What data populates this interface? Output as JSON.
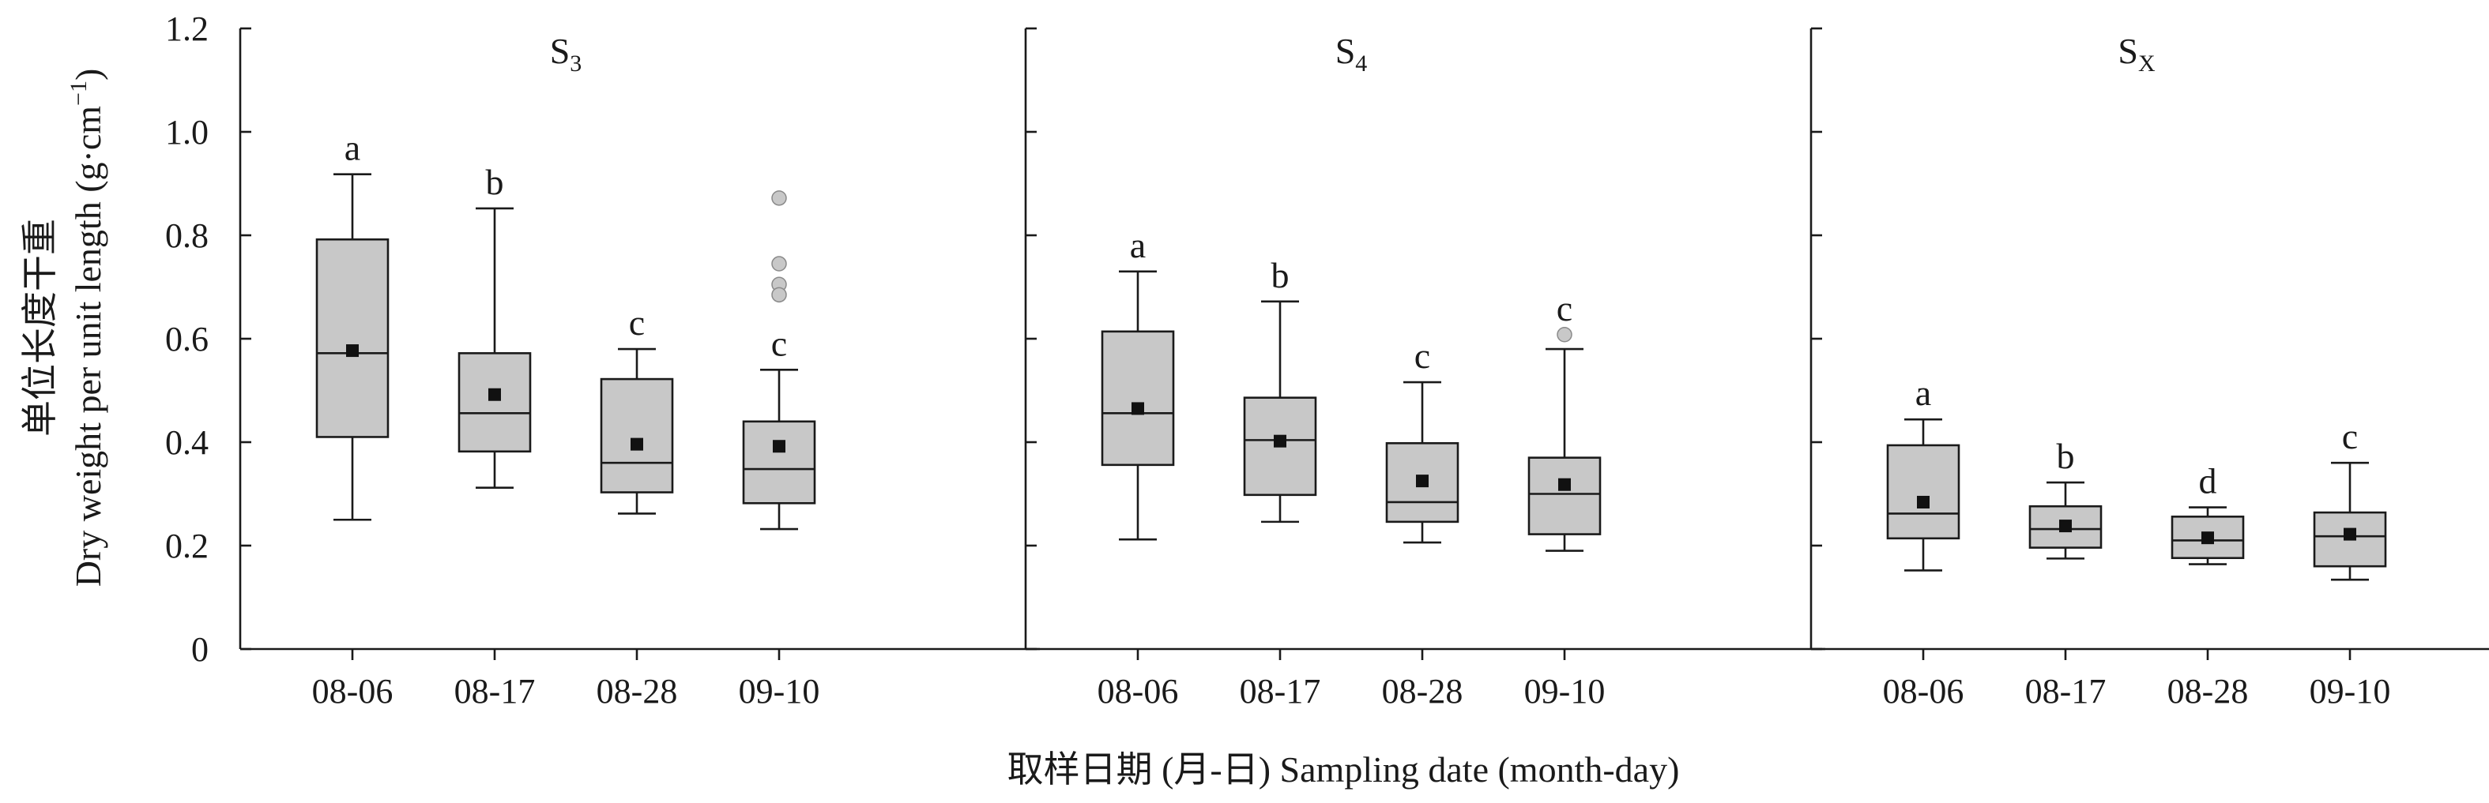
{
  "chart_data": [
    {
      "type": "box",
      "panel_label": "S",
      "panel_subscript": "3",
      "categories": [
        "08-06",
        "08-17",
        "08-28",
        "09-10"
      ],
      "boxes": [
        {
          "min": 0.25,
          "q1": 0.41,
          "median": 0.572,
          "q3": 0.792,
          "max": 0.918,
          "mean": 0.577,
          "outliers": [],
          "letter": "a"
        },
        {
          "min": 0.312,
          "q1": 0.382,
          "median": 0.456,
          "q3": 0.572,
          "max": 0.852,
          "mean": 0.492,
          "outliers": [],
          "letter": "b"
        },
        {
          "min": 0.262,
          "q1": 0.303,
          "median": 0.36,
          "q3": 0.522,
          "max": 0.58,
          "mean": 0.396,
          "outliers": [],
          "letter": "c"
        },
        {
          "min": 0.232,
          "q1": 0.282,
          "median": 0.348,
          "q3": 0.44,
          "max": 0.54,
          "mean": 0.392,
          "outliers": [
            0.872,
            0.745,
            0.705,
            0.685
          ],
          "letter": "c"
        }
      ],
      "ylim": [
        0,
        1.2
      ]
    },
    {
      "type": "box",
      "panel_label": "S",
      "panel_subscript": "4",
      "categories": [
        "08-06",
        "08-17",
        "08-28",
        "09-10"
      ],
      "boxes": [
        {
          "min": 0.212,
          "q1": 0.356,
          "median": 0.456,
          "q3": 0.614,
          "max": 0.73,
          "mean": 0.465,
          "outliers": [],
          "letter": "a"
        },
        {
          "min": 0.246,
          "q1": 0.298,
          "median": 0.404,
          "q3": 0.486,
          "max": 0.672,
          "mean": 0.402,
          "outliers": [],
          "letter": "b"
        },
        {
          "min": 0.206,
          "q1": 0.246,
          "median": 0.284,
          "q3": 0.398,
          "max": 0.516,
          "mean": 0.325,
          "outliers": [],
          "letter": "c"
        },
        {
          "min": 0.19,
          "q1": 0.222,
          "median": 0.3,
          "q3": 0.37,
          "max": 0.58,
          "mean": 0.318,
          "outliers": [
            0.608
          ],
          "letter": "c"
        }
      ],
      "ylim": [
        0,
        1.2
      ]
    },
    {
      "type": "box",
      "panel_label": "S",
      "panel_subscript": "X",
      "categories": [
        "08-06",
        "08-17",
        "08-28",
        "09-10"
      ],
      "boxes": [
        {
          "min": 0.152,
          "q1": 0.214,
          "median": 0.262,
          "q3": 0.394,
          "max": 0.444,
          "mean": 0.284,
          "outliers": [],
          "letter": "a"
        },
        {
          "min": 0.175,
          "q1": 0.196,
          "median": 0.232,
          "q3": 0.276,
          "max": 0.322,
          "mean": 0.238,
          "outliers": [],
          "letter": "b"
        },
        {
          "min": 0.164,
          "q1": 0.176,
          "median": 0.21,
          "q3": 0.256,
          "max": 0.274,
          "mean": 0.215,
          "outliers": [],
          "letter": "d"
        },
        {
          "min": 0.134,
          "q1": 0.16,
          "median": 0.218,
          "q3": 0.264,
          "max": 0.36,
          "mean": 0.222,
          "outliers": [],
          "letter": "c"
        }
      ],
      "ylim": [
        0,
        1.2
      ]
    }
  ],
  "yticks": [
    "0",
    "0.2",
    "0.4",
    "0.6",
    "0.8",
    "1.0",
    "1.2"
  ],
  "ylabel_cn": "单位长度干重",
  "ylabel_en": "Dry weight per unit length (g·cm",
  "ylabel_en_sup": "−1",
  "ylabel_en_end": ")",
  "xlabel": "取样日期 (月-日) Sampling date (month-day)",
  "colors": {
    "box_fill": "#c8c8c8",
    "outlier_fill": "#c8c8c8",
    "outlier_stroke": "#8a8a8a",
    "mean_marker": "#111111",
    "axis": "#1a1a1a"
  }
}
